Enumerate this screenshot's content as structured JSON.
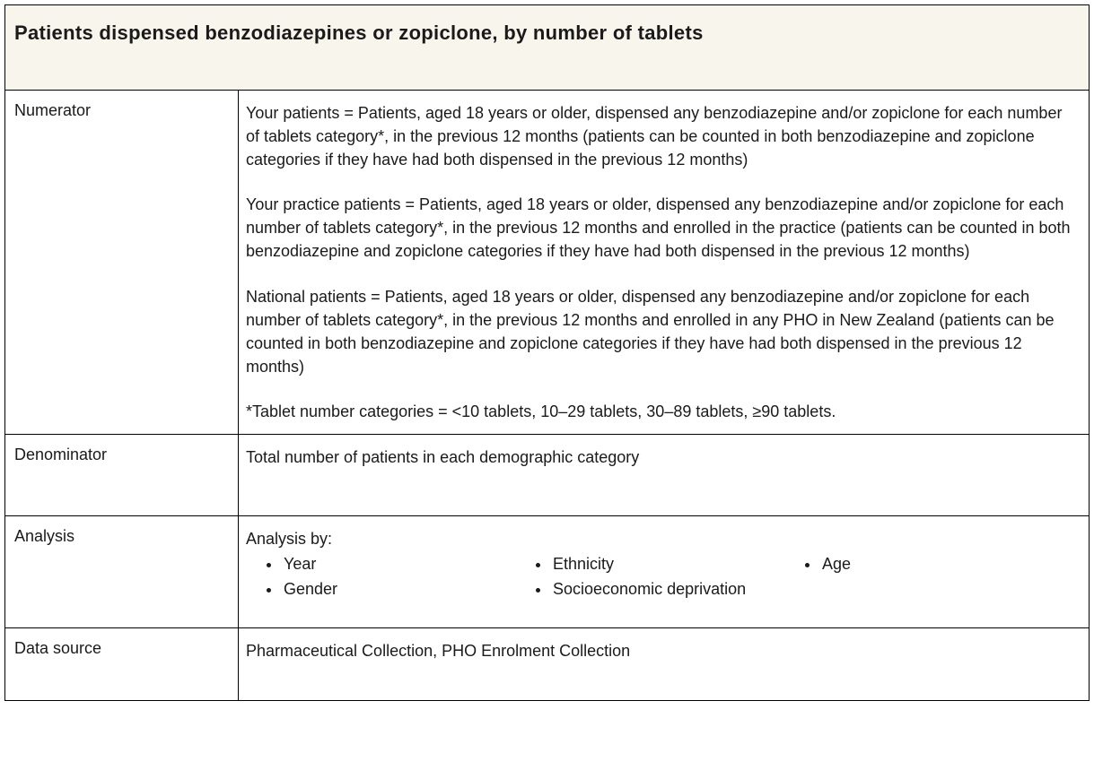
{
  "header": {
    "title": "Patients dispensed benzodiazepines or zopiclone, by number of tablets"
  },
  "rows": {
    "numerator": {
      "label": "Numerator",
      "p1": "Your patients = Patients, aged 18 years or older, dispensed any benzodiazepine and/or zopiclone for each number of tablets category*, in the previous 12 months (patients can be counted in both benzodiazepine and zopiclone categories if they have had both dispensed in the previous 12 months)",
      "p2": "Your practice patients = Patients, aged 18 years or older, dispensed any benzodiazepine and/or zopiclone for each number of tablets category*, in the previous 12 months and enrolled in the practice (patients can be counted in both benzodiazepine and zopiclone categories if they have had both dispensed in the previous 12 months)",
      "p3": "National patients = Patients, aged 18 years or older, dispensed any benzodiazepine and/or zopiclone for each number of tablets category*, in the previous 12 months and enrolled in any PHO in New Zealand (patients can be counted in both benzodiazepine and zopiclone categories if they have had both dispensed in the previous 12 months)",
      "p4": "*Tablet number categories = <10 tablets, 10–29 tablets, 30–89 tablets, ≥90 tablets."
    },
    "denominator": {
      "label": "Denominator",
      "text": "Total number of patients in each demographic category"
    },
    "analysis": {
      "label": "Analysis",
      "intro": "Analysis by:",
      "col1_item1": "Year",
      "col1_item2": "Gender",
      "col2_item1": "Ethnicity",
      "col2_item2": "Socioeconomic deprivation",
      "col3_item1": "Age"
    },
    "datasource": {
      "label": "Data source",
      "text": "Pharmaceutical Collection, PHO Enrolment Collection"
    }
  },
  "style": {
    "header_bg": "#f8f5ed",
    "border_color": "#000000",
    "text_color": "#1a1a1a",
    "title_fontsize": 22,
    "body_fontsize": 18,
    "label_col_width": 260,
    "container_width": 1209
  }
}
